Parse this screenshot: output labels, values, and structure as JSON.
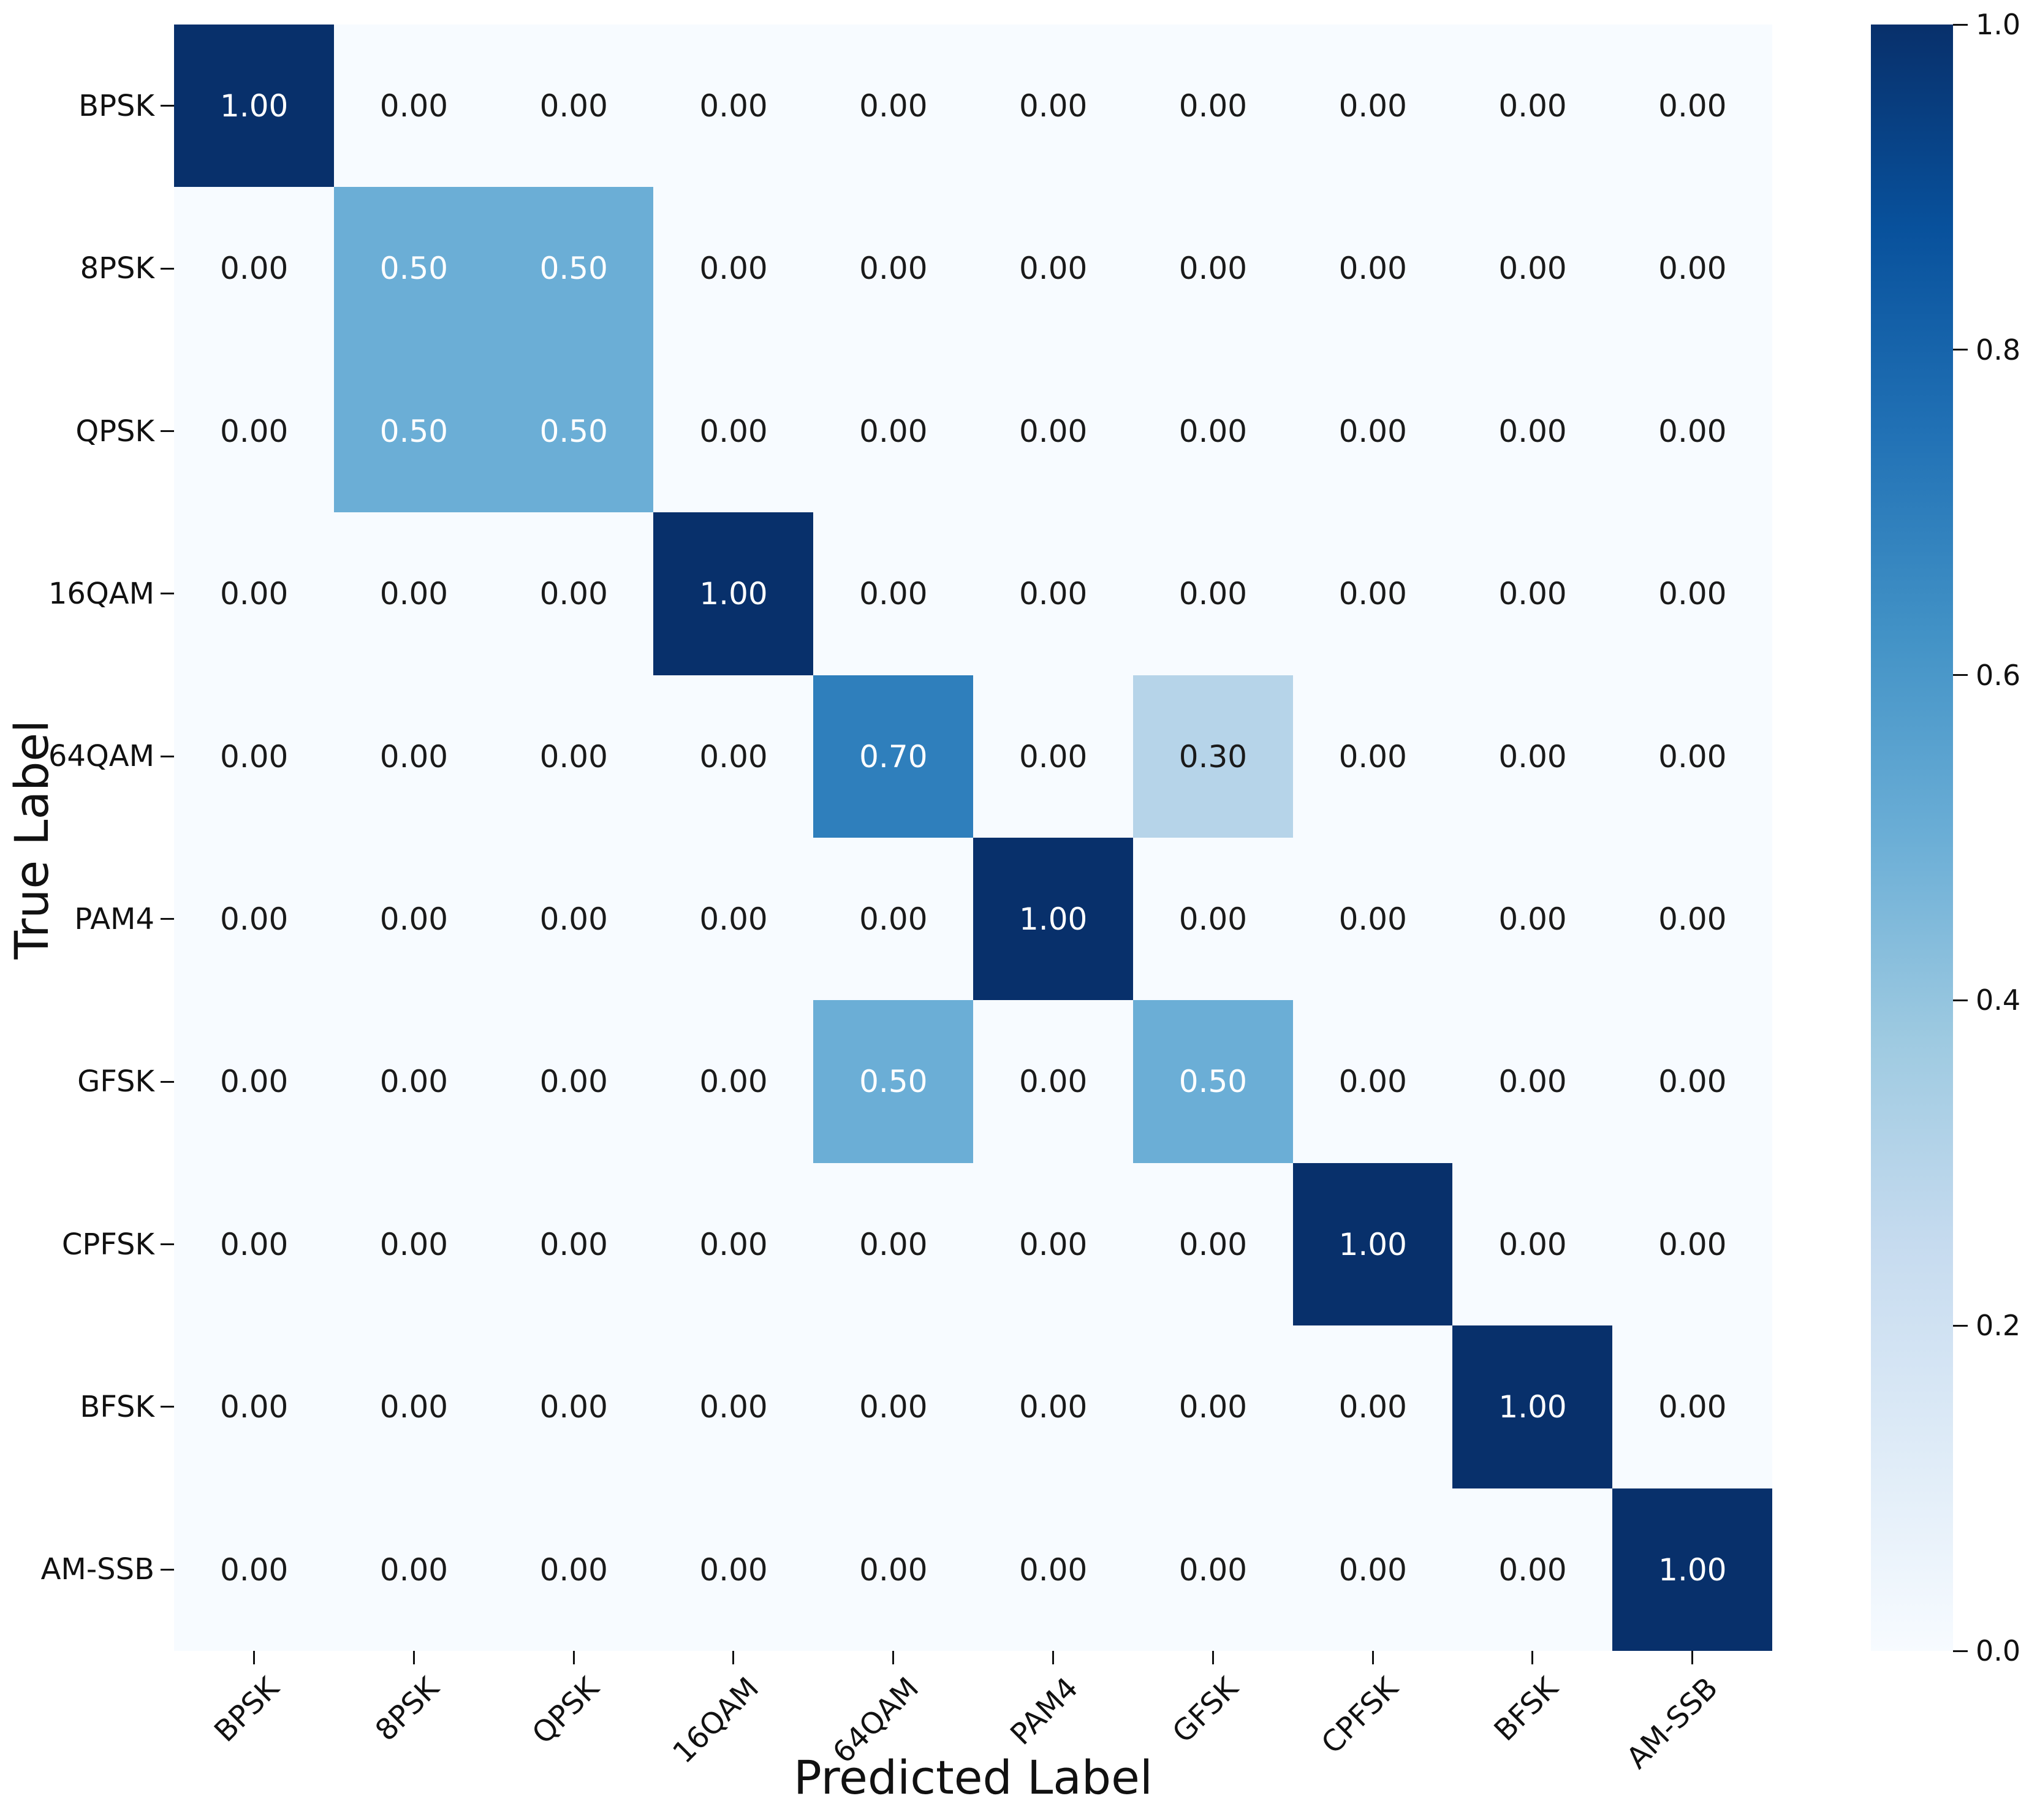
{
  "axes": {
    "x_label": "Predicted Label",
    "y_label": "True Label"
  },
  "chart_data": {
    "type": "heatmap",
    "title": "",
    "xlabel": "Predicted Label",
    "ylabel": "True Label",
    "x_categories": [
      "BPSK",
      "8PSK",
      "QPSK",
      "16QAM",
      "64QAM",
      "PAM4",
      "GFSK",
      "CPFSK",
      "BFSK",
      "AM-SSB"
    ],
    "y_categories": [
      "BPSK",
      "8PSK",
      "QPSK",
      "16QAM",
      "64QAM",
      "PAM4",
      "GFSK",
      "CPFSK",
      "BFSK",
      "AM-SSB"
    ],
    "matrix": [
      [
        1.0,
        0.0,
        0.0,
        0.0,
        0.0,
        0.0,
        0.0,
        0.0,
        0.0,
        0.0
      ],
      [
        0.0,
        0.5,
        0.5,
        0.0,
        0.0,
        0.0,
        0.0,
        0.0,
        0.0,
        0.0
      ],
      [
        0.0,
        0.5,
        0.5,
        0.0,
        0.0,
        0.0,
        0.0,
        0.0,
        0.0,
        0.0
      ],
      [
        0.0,
        0.0,
        0.0,
        1.0,
        0.0,
        0.0,
        0.0,
        0.0,
        0.0,
        0.0
      ],
      [
        0.0,
        0.0,
        0.0,
        0.0,
        0.7,
        0.0,
        0.3,
        0.0,
        0.0,
        0.0
      ],
      [
        0.0,
        0.0,
        0.0,
        0.0,
        0.0,
        1.0,
        0.0,
        0.0,
        0.0,
        0.0
      ],
      [
        0.0,
        0.0,
        0.0,
        0.0,
        0.5,
        0.0,
        0.5,
        0.0,
        0.0,
        0.0
      ],
      [
        0.0,
        0.0,
        0.0,
        0.0,
        0.0,
        0.0,
        0.0,
        1.0,
        0.0,
        0.0
      ],
      [
        0.0,
        0.0,
        0.0,
        0.0,
        0.0,
        0.0,
        0.0,
        0.0,
        1.0,
        0.0
      ],
      [
        0.0,
        0.0,
        0.0,
        0.0,
        0.0,
        0.0,
        0.0,
        0.0,
        0.0,
        1.0
      ]
    ],
    "value_decimals": 2,
    "vmin": 0.0,
    "vmax": 1.0,
    "grid": false,
    "legend_position": "colorbar-right",
    "colorbar_ticks": [
      "0.0",
      "0.2",
      "0.4",
      "0.6",
      "0.8",
      "1.0"
    ],
    "colorbar_tick_positions": [
      0.0,
      0.2,
      0.4,
      0.6,
      0.8,
      1.0
    ],
    "colormap_name": "Blues",
    "colormap_stops": [
      {
        "pos": 0.0,
        "color": "#f7fbff"
      },
      {
        "pos": 0.125,
        "color": "#deebf7"
      },
      {
        "pos": 0.25,
        "color": "#c6dbef"
      },
      {
        "pos": 0.375,
        "color": "#9ecae1"
      },
      {
        "pos": 0.5,
        "color": "#6baed6"
      },
      {
        "pos": 0.625,
        "color": "#4292c6"
      },
      {
        "pos": 0.75,
        "color": "#2171b5"
      },
      {
        "pos": 0.875,
        "color": "#08519c"
      },
      {
        "pos": 1.0,
        "color": "#08306b"
      }
    ],
    "value_colors": {
      "0": "#f7fbff",
      "0.3": "#b6d4e9",
      "0.5": "#6baed6",
      "0.7": "#2f7fbc",
      "1": "#08306b"
    },
    "annotation_text_colors": {
      "dark": "#1a1a1a",
      "light": "#ffffff",
      "light_threshold": 0.5
    }
  }
}
